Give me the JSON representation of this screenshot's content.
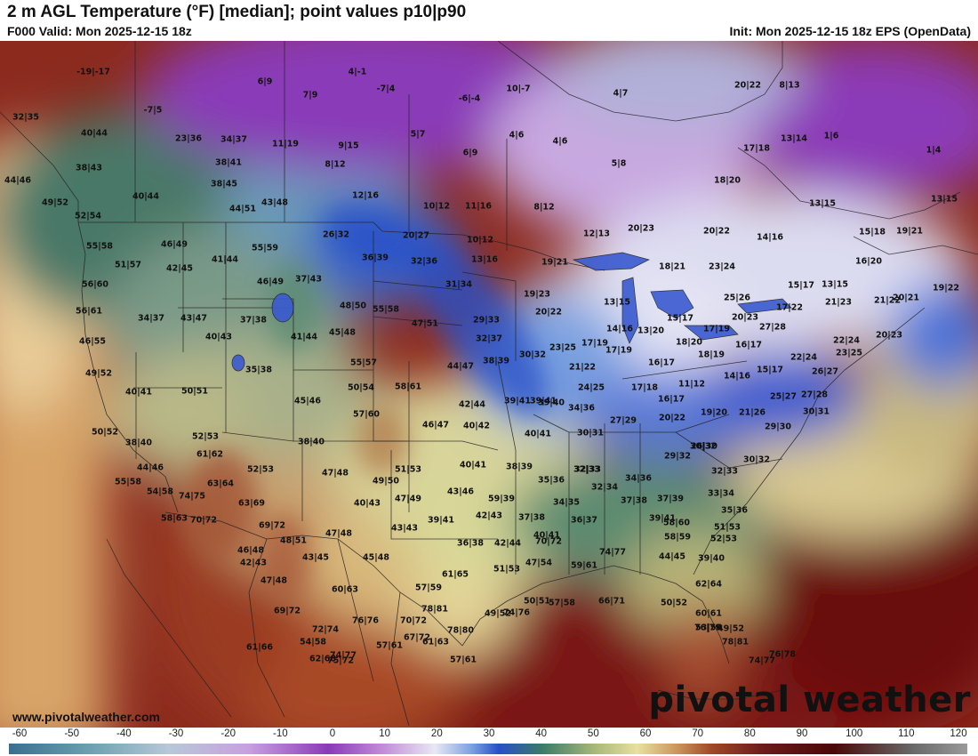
{
  "header": {
    "title": "2 m AGL Temperature (°F) [median]; point values p10|p90",
    "valid": "F000 Valid: Mon 2025-12-15 18z",
    "init": "Init: Mon 2025-12-15 18z EPS (OpenData)"
  },
  "footer": {
    "website": "www.pivotalweather.com",
    "logo": "pivotal weather"
  },
  "colorbar": {
    "ticks": [
      "-60",
      "-50",
      "-40",
      "-30",
      "-20",
      "-10",
      "0",
      "10",
      "20",
      "30",
      "40",
      "50",
      "60",
      "70",
      "80",
      "90",
      "100",
      "110",
      "120"
    ],
    "min": -60,
    "max": 120,
    "stops": [
      {
        "v": -60,
        "c": "#3a6f8f"
      },
      {
        "v": -45,
        "c": "#6aa0b0"
      },
      {
        "v": -30,
        "c": "#b8c8d8"
      },
      {
        "v": -15,
        "c": "#c8a0e0"
      },
      {
        "v": 0,
        "c": "#8a3ab8"
      },
      {
        "v": 10,
        "c": "#c28ad8"
      },
      {
        "v": 20,
        "c": "#e8e8f4"
      },
      {
        "v": 27,
        "c": "#7aa0e0"
      },
      {
        "v": 32,
        "c": "#2850c8"
      },
      {
        "v": 40,
        "c": "#3a7a68"
      },
      {
        "v": 50,
        "c": "#a8b878"
      },
      {
        "v": 58,
        "c": "#e8e0a0"
      },
      {
        "v": 66,
        "c": "#c89058"
      },
      {
        "v": 72,
        "c": "#a04828"
      },
      {
        "v": 82,
        "c": "#6a1a1a"
      },
      {
        "v": 95,
        "c": "#4a0808"
      },
      {
        "v": 110,
        "c": "#6a6a6a"
      },
      {
        "v": 120,
        "c": "#9a9a9a"
      }
    ]
  },
  "map": {
    "point_values": [
      "-19|-17",
      "6|9",
      "4|-1",
      "-7|4",
      "-6|-4",
      "10|-7",
      "4|7",
      "20|22",
      "8|13",
      "32|35",
      "-7|5",
      "23|36",
      "34|37",
      "7|9",
      "40|44",
      "11|19",
      "9|15",
      "5|7",
      "4|6",
      "4|6",
      "13|14",
      "1|6",
      "17|18",
      "1|4",
      "6|9",
      "38|43",
      "38|41",
      "8|12",
      "5|8",
      "44|46",
      "38|45",
      "40|44",
      "12|16",
      "18|20",
      "49|52",
      "43|48",
      "44|51",
      "10|12",
      "11|16",
      "8|12",
      "13|15",
      "13|15",
      "52|54",
      "20|23",
      "20|22",
      "26|32",
      "20|27",
      "10|12",
      "12|13",
      "14|16",
      "15|18",
      "19|21",
      "55|58",
      "46|49",
      "55|59",
      "41|44",
      "36|39",
      "32|36",
      "13|16",
      "19|21",
      "18|21",
      "23|24",
      "16|20",
      "51|57",
      "42|45",
      "46|49",
      "37|43",
      "31|34",
      "19|23",
      "13|15",
      "25|26",
      "15|17",
      "13|15",
      "21|23",
      "20|21",
      "19|22",
      "56|60",
      "48|50",
      "55|58",
      "20|22",
      "15|17",
      "17|22",
      "56|61",
      "34|37",
      "43|47",
      "37|38",
      "47|51",
      "29|33",
      "14|16",
      "13|20",
      "20|23",
      "27|28",
      "21|22",
      "46|55",
      "40|43",
      "41|44",
      "45|48",
      "32|37",
      "23|25",
      "17|19",
      "18|20",
      "17|19",
      "20|23",
      "22|24",
      "49|52",
      "35|38",
      "55|57",
      "44|47",
      "38|39",
      "30|32",
      "17|19",
      "16|17",
      "18|19",
      "16|17",
      "22|24",
      "23|25",
      "40|41",
      "50|51",
      "50|54",
      "58|61",
      "21|22",
      "14|16",
      "15|17",
      "26|27",
      "39|41",
      "45|46",
      "42|44",
      "39|41",
      "39|40",
      "24|25",
      "17|18",
      "11|12",
      "25|27",
      "27|28",
      "57|60",
      "46|47",
      "34|36",
      "16|17",
      "50|52",
      "40|42",
      "27|29",
      "20|22",
      "19|20",
      "21|26",
      "30|31",
      "38|40",
      "52|53",
      "40|41",
      "30|31",
      "29|30",
      "61|62",
      "38|40",
      "30|32",
      "44|46",
      "52|53",
      "47|48",
      "51|53",
      "40|41",
      "38|39",
      "32|33",
      "26|30",
      "29|32",
      "30|32",
      "55|58",
      "63|64",
      "49|50",
      "35|36",
      "34|36",
      "32|33",
      "32|33",
      "54|58",
      "74|75",
      "63|69",
      "47|49",
      "43|46",
      "59|39",
      "32|34",
      "37|39",
      "33|34",
      "40|43",
      "34|35",
      "37|38",
      "35|36",
      "58|63",
      "70|72",
      "69|72",
      "42|43",
      "37|38",
      "36|37",
      "40|41",
      "39|41",
      "58|60",
      "51|53",
      "46|48",
      "48|51",
      "47|48",
      "43|43",
      "39|41",
      "36|38",
      "42|44",
      "70|72",
      "58|59",
      "52|53",
      "42|43",
      "43|45",
      "45|48",
      "47|54",
      "74|77",
      "44|45",
      "39|40",
      "47|48",
      "51|53",
      "59|61",
      "61|65",
      "57|59",
      "60|63",
      "62|64",
      "50|51",
      "66|71",
      "74|76",
      "57|58",
      "49|52",
      "50|52",
      "69|72",
      "76|76",
      "70|72",
      "78|81",
      "60|61",
      "53|56",
      "49|52",
      "72|74",
      "67|72",
      "78|81",
      "54|58",
      "75|72",
      "78|80",
      "61|63",
      "57|61",
      "76|78",
      "76|79",
      "74|77",
      "61|66",
      "62|68",
      "57|61",
      "74|77"
    ]
  }
}
